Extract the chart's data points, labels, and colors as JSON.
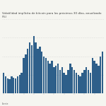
{
  "title": "Volatilidad implícita de bitcoin para los próximos 30 días, anualizado (%)",
  "bar_color": "#2e5f8a",
  "background_color": "#f5f5f0",
  "source_label": "Fuente",
  "values": [
    22,
    18,
    16,
    15,
    18,
    17,
    16,
    18,
    20,
    22,
    38,
    42,
    48,
    55,
    52,
    62,
    55,
    48,
    50,
    45,
    40,
    38,
    35,
    32,
    35,
    28,
    30,
    32,
    25,
    28,
    22,
    20,
    25,
    32,
    28,
    25,
    22,
    20,
    18,
    22,
    25,
    28,
    25,
    22,
    38,
    35,
    32,
    30,
    40,
    45
  ],
  "ylim": [
    0,
    80
  ],
  "grid_color": "#cccccc",
  "title_color": "#444444",
  "title_fontsize": 3.0,
  "tick_fontsize": 2.2,
  "figsize": [
    1.5,
    1.5
  ],
  "dpi": 100
}
